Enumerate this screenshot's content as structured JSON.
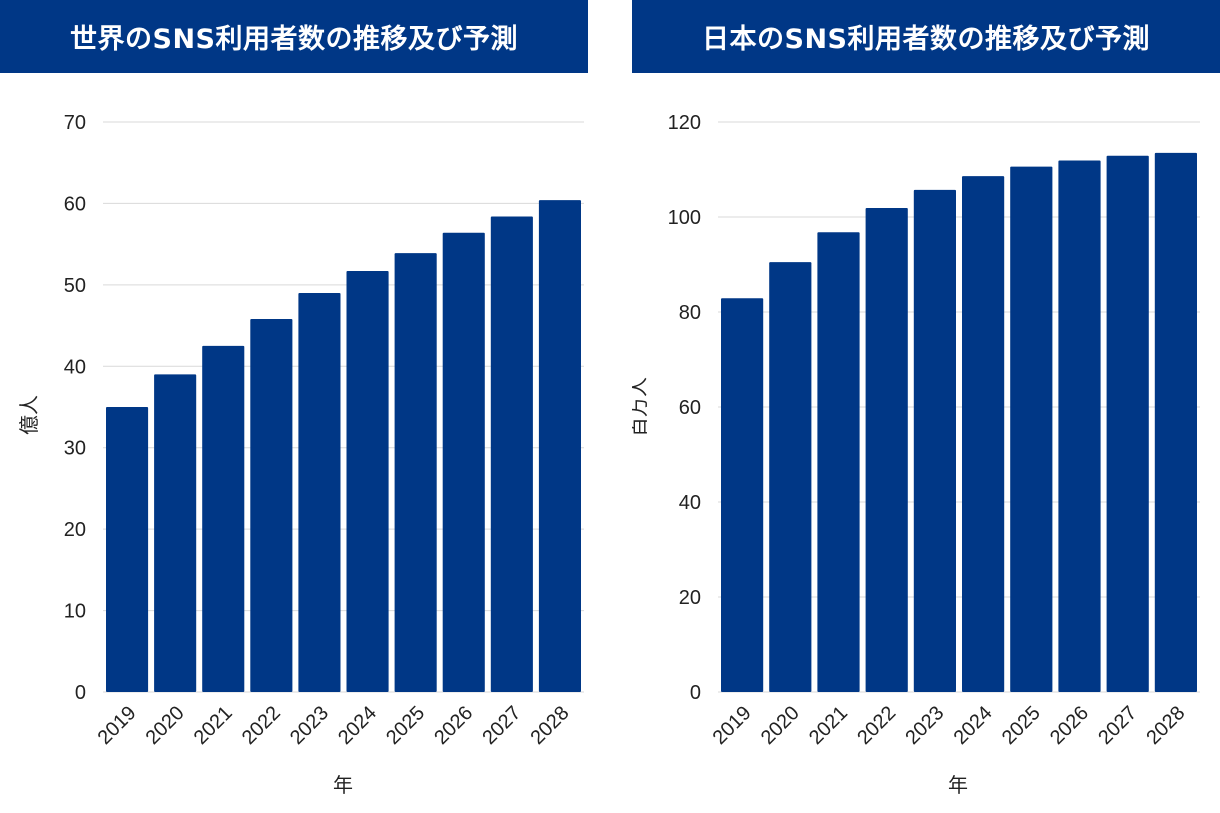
{
  "colors": {
    "banner": "#003786",
    "bar": "#003786",
    "grid": "#d9d9d9"
  },
  "chart_data": [
    {
      "type": "bar",
      "title": "世界のSNS利用者数の推移及び予測",
      "xlabel": "年",
      "ylabel": "億人",
      "categories": [
        "2019",
        "2020",
        "2021",
        "2022",
        "2023",
        "2024",
        "2025",
        "2026",
        "2027",
        "2028"
      ],
      "values": [
        35.0,
        39.0,
        42.5,
        45.8,
        49.0,
        51.7,
        53.9,
        56.4,
        58.4,
        60.4
      ],
      "ylim": [
        0,
        70
      ],
      "yticks": [
        0,
        10,
        20,
        30,
        40,
        50,
        60,
        70
      ],
      "grid": true
    },
    {
      "type": "bar",
      "title": "日本のSNS利用者数の推移及び予測",
      "xlabel": "年",
      "ylabel": "百万人",
      "categories": [
        "2019",
        "2020",
        "2021",
        "2022",
        "2023",
        "2024",
        "2025",
        "2026",
        "2027",
        "2028"
      ],
      "values": [
        82.9,
        90.5,
        96.8,
        101.9,
        105.7,
        108.6,
        110.6,
        111.9,
        112.9,
        113.5
      ],
      "ylim": [
        0,
        120
      ],
      "yticks": [
        0,
        20,
        40,
        60,
        80,
        100,
        120
      ],
      "grid": true
    }
  ]
}
